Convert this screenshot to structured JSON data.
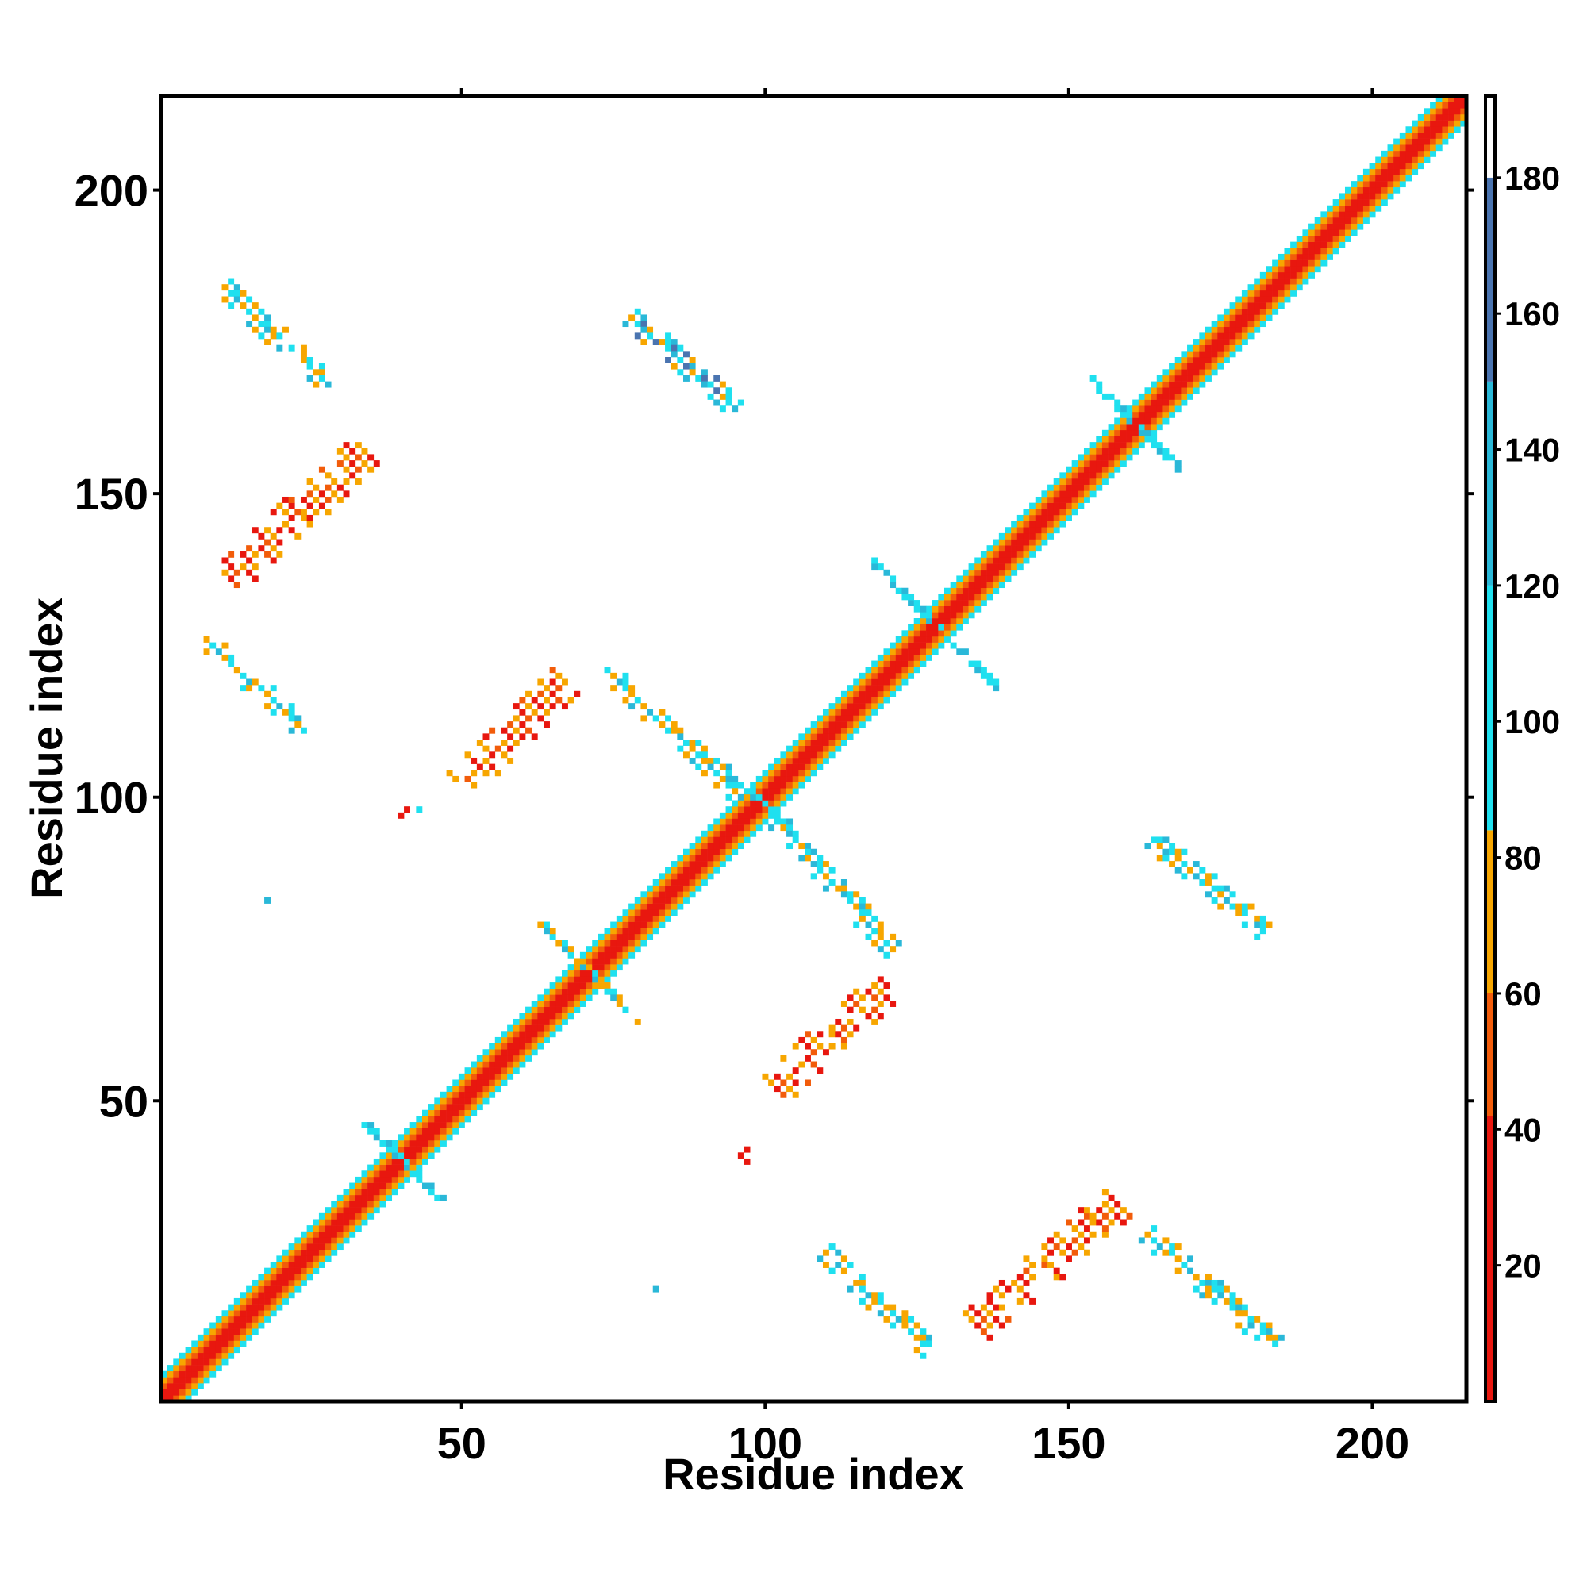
{
  "chart_data": {
    "type": "heatmap",
    "title": "",
    "xlabel": "Residue index",
    "ylabel": "Residue index",
    "xlim": [
      1,
      215
    ],
    "ylim": [
      1,
      215
    ],
    "x_ticks": [
      50,
      100,
      150,
      200
    ],
    "y_ticks": [
      50,
      100,
      150,
      200
    ],
    "colorbar": {
      "range": [
        0,
        192
      ],
      "ticks": [
        20,
        40,
        60,
        80,
        100,
        120,
        140,
        160,
        180
      ],
      "bands": [
        {
          "from": 0,
          "to": 42,
          "color": "#e8170f"
        },
        {
          "from": 42,
          "to": 60,
          "color": "#f25c0a"
        },
        {
          "from": 60,
          "to": 84,
          "color": "#f7a600"
        },
        {
          "from": 84,
          "to": 120,
          "color": "#1fe0ef"
        },
        {
          "from": 120,
          "to": 150,
          "color": "#2ab8d8"
        },
        {
          "from": 150,
          "to": 180,
          "color": "#4a74b0"
        },
        {
          "from": 180,
          "to": 192,
          "color": "#ffffff"
        }
      ]
    },
    "diagonal_band": {
      "residue_range": [
        1,
        215
      ],
      "half_width": 4,
      "offset_values": [
        8,
        28,
        55,
        75,
        105,
        140,
        105,
        75,
        55
      ]
    },
    "contact_regions": [
      {
        "name": "strand-pair-1",
        "start": [
          11,
          184
        ],
        "end": [
          28,
          168
        ],
        "pattern": "antiparallel",
        "values": [
          70,
          105,
          120,
          75,
          105
        ]
      },
      {
        "name": "strand-pair-2",
        "start": [
          12,
          136
        ],
        "end": [
          34,
          157
        ],
        "pattern": "parallel",
        "values": [
          15,
          50,
          70,
          15,
          70
        ]
      },
      {
        "name": "strand-pair-3",
        "start": [
          8,
          126
        ],
        "end": [
          24,
          111
        ],
        "pattern": "antiparallel",
        "values": [
          70,
          105,
          120,
          75,
          105
        ]
      },
      {
        "name": "strand-pair-4",
        "start": [
          78,
          179
        ],
        "end": [
          95,
          164
        ],
        "pattern": "antiparallel",
        "values": [
          70,
          105,
          130,
          105,
          150
        ]
      },
      {
        "name": "strand-pair-5",
        "start": [
          50,
          102
        ],
        "end": [
          67,
          119
        ],
        "pattern": "parallel",
        "values": [
          15,
          50,
          70,
          15,
          70
        ]
      },
      {
        "name": "strand-pair-6",
        "start": [
          74,
          121
        ],
        "end": [
          96,
          100
        ],
        "pattern": "antiparallel",
        "values": [
          105,
          70,
          120,
          105,
          75
        ]
      },
      {
        "name": "strand-pair-7",
        "start": [
          102,
          96
        ],
        "end": [
          121,
          75
        ],
        "pattern": "antiparallel",
        "values": [
          105,
          70,
          120,
          105,
          75
        ]
      },
      {
        "name": "strand-pair-8",
        "start": [
          102,
          52
        ],
        "end": [
          120,
          69
        ],
        "pattern": "parallel",
        "values": [
          15,
          50,
          70,
          15,
          70
        ]
      },
      {
        "name": "strand-pair-9",
        "start": [
          110,
          25
        ],
        "end": [
          127,
          9
        ],
        "pattern": "antiparallel",
        "values": [
          70,
          105,
          130,
          75,
          105
        ]
      },
      {
        "name": "strand-pair-10",
        "start": [
          135,
          13
        ],
        "end": [
          158,
          33
        ],
        "pattern": "parallel",
        "values": [
          15,
          50,
          70,
          15,
          70
        ]
      },
      {
        "name": "strand-pair-11",
        "start": [
          163,
          28
        ],
        "end": [
          184,
          10
        ],
        "pattern": "antiparallel",
        "values": [
          70,
          105,
          120,
          75,
          105
        ]
      },
      {
        "name": "strand-pair-12",
        "start": [
          164,
          93
        ],
        "end": [
          182,
          78
        ],
        "pattern": "antiparallel",
        "values": [
          105,
          70,
          120,
          105,
          75
        ]
      }
    ],
    "diagonal_crossings": [
      {
        "at": 40,
        "reach": 6,
        "values": [
          105,
          120,
          105
        ]
      },
      {
        "at": 71,
        "reach": 8,
        "values": [
          105,
          120,
          70
        ]
      },
      {
        "at": 99,
        "reach": 5,
        "values": [
          105,
          120,
          105
        ]
      },
      {
        "at": 128,
        "reach": 10,
        "values": [
          105,
          120,
          105
        ]
      },
      {
        "at": 161,
        "reach": 7,
        "values": [
          105,
          120,
          105
        ]
      }
    ],
    "isolated_points": [
      {
        "x": 18,
        "y": 83,
        "value": 130
      },
      {
        "x": 82,
        "y": 19,
        "value": 130
      },
      {
        "x": 40,
        "y": 97,
        "value": 15
      },
      {
        "x": 41,
        "y": 98,
        "value": 15
      },
      {
        "x": 43,
        "y": 98,
        "value": 110
      },
      {
        "x": 96,
        "y": 41,
        "value": 15
      },
      {
        "x": 97,
        "y": 40,
        "value": 15
      },
      {
        "x": 97,
        "y": 42,
        "value": 15
      }
    ]
  }
}
